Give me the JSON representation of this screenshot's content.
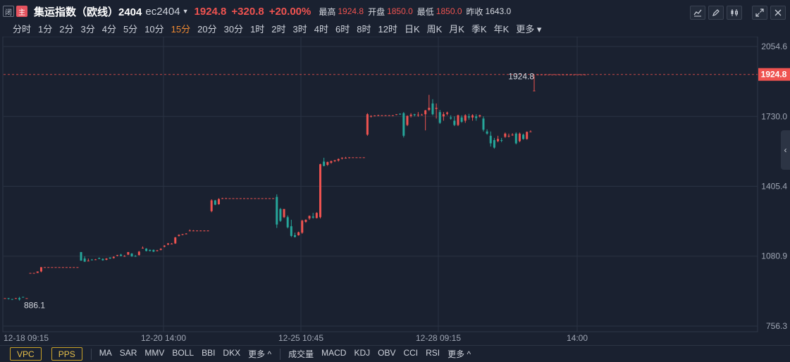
{
  "header": {
    "badges": [
      "闭",
      "主"
    ],
    "title": "集运指数（欧线）2404",
    "code": "ec2404",
    "last_price": "1924.8",
    "change": "+320.8",
    "change_pct": "+20.00%",
    "high_label": "最高",
    "high": "1924.8",
    "open_label": "开盘",
    "open": "1850.0",
    "low_label": "最低",
    "low": "1850.0",
    "prev_label": "昨收",
    "prev_close": "1643.0",
    "tools": [
      "line-chart-icon",
      "pencil-icon",
      "candlestick-icon",
      "expand-icon",
      "close-icon"
    ]
  },
  "periods": [
    "分时",
    "1分",
    "2分",
    "3分",
    "4分",
    "5分",
    "10分",
    "15分",
    "20分",
    "30分",
    "1时",
    "2时",
    "3时",
    "4时",
    "6时",
    "8时",
    "12时",
    "日K",
    "周K",
    "月K",
    "季K",
    "年K",
    "更多"
  ],
  "active_period": "15分",
  "bottom": {
    "boxed": [
      "VPC",
      "PPS"
    ],
    "main_indicators": [
      "MA",
      "SAR",
      "MMV",
      "BOLL",
      "BBI",
      "DKX",
      "更多 ^"
    ],
    "sub_indicators": [
      "成交量",
      "MACD",
      "KDJ",
      "OBV",
      "CCI",
      "RSI",
      "更多 ^"
    ]
  },
  "colors": {
    "up": "#ef5350",
    "down": "#26a69a",
    "background": "#1a2130",
    "grid": "#2a3343"
  },
  "chart_data": {
    "type": "candlestick",
    "title": "",
    "y_ticks": [
      2054.6,
      1730.0,
      1405.4,
      1080.9,
      756.3
    ],
    "ylim": [
      756.3,
      2054.6
    ],
    "x_ticks": [
      "12-18 09:15",
      "12-20 14:00",
      "12-25 10:45",
      "12-28 09:15",
      "14:00"
    ],
    "current_price_label": "1924.8",
    "annotations": [
      "886.1",
      "1924.8"
    ],
    "candles": [
      [
        886,
        886,
        886,
        886
      ],
      [
        886,
        886,
        883,
        880
      ],
      [
        882,
        882,
        880,
        878
      ],
      [
        885,
        887,
        886,
        884
      ],
      [
        886,
        892,
        880,
        875
      ],
      [
        892,
        892,
        890,
        888
      ],
      [
        886,
        886,
        886,
        886
      ],
      [
        1003,
        1003,
        1003,
        1003
      ],
      [
        1003,
        1003,
        1003,
        1003
      ],
      [
        1003,
        1004,
        1010,
        1008
      ],
      [
        1010,
        1012,
        1030,
        1006
      ],
      [
        1030,
        1030,
        1030,
        1030
      ],
      [
        1030,
        1030,
        1030,
        1030
      ],
      [
        1030,
        1030,
        1030,
        1030
      ],
      [
        1030,
        1030,
        1030,
        1030
      ],
      [
        1030,
        1030,
        1030,
        1030
      ],
      [
        1030,
        1030,
        1030,
        1030
      ],
      [
        1030,
        1030,
        1030,
        1030
      ],
      [
        1030,
        1030,
        1030,
        1030
      ],
      [
        1030,
        1030,
        1030,
        1030
      ],
      [
        1030,
        1030,
        1030,
        1030
      ],
      [
        1100,
        1100,
        1060,
        1060
      ],
      [
        1070,
        1080,
        1055,
        1060
      ],
      [
        1060,
        1070,
        1060,
        1058
      ],
      [
        1065,
        1068,
        1064,
        1063
      ],
      [
        1065,
        1068,
        1066,
        1063
      ],
      [
        1072,
        1075,
        1068,
        1067
      ],
      [
        1068,
        1071,
        1062,
        1060
      ],
      [
        1064,
        1072,
        1070,
        1062
      ],
      [
        1075,
        1075,
        1070,
        1068
      ],
      [
        1072,
        1080,
        1078,
        1070
      ],
      [
        1083,
        1087,
        1086,
        1080
      ],
      [
        1088,
        1092,
        1082,
        1080
      ],
      [
        1082,
        1086,
        1082,
        1078
      ],
      [
        1088,
        1100,
        1100,
        1086
      ],
      [
        1093,
        1095,
        1080,
        1078
      ],
      [
        1082,
        1086,
        1080,
        1078
      ],
      [
        1086,
        1105,
        1102,
        1084
      ],
      [
        1120,
        1126,
        1120,
        1116
      ],
      [
        1116,
        1118,
        1105,
        1103
      ],
      [
        1110,
        1112,
        1105,
        1103
      ],
      [
        1110,
        1112,
        1102,
        1100
      ],
      [
        1105,
        1110,
        1108,
        1103
      ],
      [
        1110,
        1118,
        1115,
        1108
      ],
      [
        1125,
        1132,
        1130,
        1122
      ],
      [
        1135,
        1142,
        1140,
        1132
      ],
      [
        1138,
        1142,
        1139,
        1136
      ],
      [
        1140,
        1170,
        1168,
        1138
      ],
      [
        1175,
        1182,
        1180,
        1172
      ],
      [
        1180,
        1184,
        1183,
        1178
      ],
      [
        1184,
        1188,
        1186,
        1182
      ],
      [
        1200,
        1205,
        1200,
        1198
      ],
      [
        1200,
        1202,
        1200,
        1198
      ],
      [
        1200,
        1201,
        1200,
        1199
      ],
      [
        1200,
        1201,
        1200,
        1199
      ],
      [
        1200,
        1201,
        1200,
        1199
      ],
      [
        1200,
        1201,
        1200,
        1199
      ],
      [
        1290,
        1345,
        1340,
        1285
      ],
      [
        1340,
        1342,
        1320,
        1318
      ],
      [
        1322,
        1350,
        1346,
        1320
      ],
      [
        1350,
        1352,
        1350,
        1348
      ],
      [
        1350,
        1352,
        1350,
        1348
      ],
      [
        1350,
        1350,
        1350,
        1350
      ],
      [
        1350,
        1350,
        1350,
        1350
      ],
      [
        1350,
        1350,
        1350,
        1350
      ],
      [
        1350,
        1350,
        1350,
        1350
      ],
      [
        1350,
        1350,
        1350,
        1350
      ],
      [
        1350,
        1350,
        1350,
        1350
      ],
      [
        1350,
        1350,
        1350,
        1350
      ],
      [
        1350,
        1350,
        1350,
        1350
      ],
      [
        1350,
        1350,
        1350,
        1350
      ],
      [
        1350,
        1350,
        1350,
        1350
      ],
      [
        1350,
        1350,
        1350,
        1350
      ],
      [
        1350,
        1350,
        1350,
        1350
      ],
      [
        1350,
        1350,
        1350,
        1350
      ],
      [
        1356,
        1368,
        1228,
        1212
      ],
      [
        1300,
        1305,
        1245,
        1240
      ],
      [
        1262,
        1300,
        1300,
        1258
      ],
      [
        1262,
        1270,
        1215,
        1210
      ],
      [
        1220,
        1250,
        1175,
        1170
      ],
      [
        1178,
        1190,
        1170,
        1168
      ],
      [
        1178,
        1195,
        1192,
        1176
      ],
      [
        1190,
        1250,
        1246,
        1185
      ],
      [
        1240,
        1252,
        1250,
        1236
      ],
      [
        1256,
        1270,
        1268,
        1250
      ],
      [
        1265,
        1282,
        1260,
        1255
      ],
      [
        1258,
        1285,
        1282,
        1256
      ],
      [
        1262,
        1510,
        1508,
        1256
      ],
      [
        1520,
        1538,
        1500,
        1498
      ],
      [
        1505,
        1520,
        1518,
        1500
      ],
      [
        1515,
        1525,
        1522,
        1510
      ],
      [
        1522,
        1528,
        1526,
        1518
      ],
      [
        1525,
        1535,
        1532,
        1520
      ],
      [
        1535,
        1540,
        1538,
        1530
      ],
      [
        1538,
        1542,
        1538,
        1534
      ],
      [
        1538,
        1540,
        1540,
        1535
      ],
      [
        1540,
        1540,
        1540,
        1540
      ],
      [
        1540,
        1540,
        1540,
        1540
      ],
      [
        1540,
        1540,
        1540,
        1540
      ],
      [
        1540,
        1540,
        1540,
        1540
      ],
      [
        1645,
        1745,
        1740,
        1640
      ],
      [
        1730,
        1735,
        1732,
        1725
      ],
      [
        1732,
        1735,
        1734,
        1730
      ],
      [
        1735,
        1738,
        1735,
        1732
      ],
      [
        1735,
        1736,
        1735,
        1733
      ],
      [
        1735,
        1736,
        1735,
        1734
      ],
      [
        1735,
        1736,
        1735,
        1734
      ],
      [
        1735,
        1736,
        1735,
        1734
      ],
      [
        1738,
        1740,
        1740,
        1736
      ],
      [
        1742,
        1744,
        1740,
        1738
      ],
      [
        1745,
        1750,
        1640,
        1632
      ],
      [
        1690,
        1735,
        1732,
        1685
      ],
      [
        1732,
        1745,
        1738,
        1725
      ],
      [
        1740,
        1742,
        1736,
        1730
      ],
      [
        1735,
        1750,
        1738,
        1728
      ],
      [
        1738,
        1742,
        1738,
        1736
      ],
      [
        1740,
        1760,
        1758,
        1665
      ],
      [
        1760,
        1830,
        1770,
        1755
      ],
      [
        1790,
        1810,
        1740,
        1735
      ],
      [
        1765,
        1790,
        1770,
        1720
      ],
      [
        1750,
        1760,
        1700,
        1695
      ],
      [
        1730,
        1750,
        1740,
        1710
      ],
      [
        1742,
        1752,
        1748,
        1735
      ],
      [
        1725,
        1735,
        1720,
        1715
      ],
      [
        1710,
        1730,
        1690,
        1685
      ],
      [
        1690,
        1738,
        1735,
        1685
      ],
      [
        1725,
        1735,
        1705,
        1700
      ],
      [
        1710,
        1740,
        1735,
        1700
      ],
      [
        1730,
        1742,
        1725,
        1715
      ],
      [
        1725,
        1740,
        1735,
        1710
      ],
      [
        1730,
        1740,
        1722,
        1710
      ],
      [
        1730,
        1738,
        1735,
        1725
      ],
      [
        1720,
        1730,
        1668,
        1660
      ],
      [
        1660,
        1670,
        1650,
        1645
      ],
      [
        1640,
        1660,
        1605,
        1590
      ],
      [
        1620,
        1630,
        1585,
        1580
      ],
      [
        1615,
        1640,
        1625,
        1610
      ],
      [
        1620,
        1630,
        1618,
        1610
      ],
      [
        1635,
        1655,
        1650,
        1630
      ],
      [
        1640,
        1650,
        1640,
        1632
      ],
      [
        1645,
        1652,
        1645,
        1640
      ],
      [
        1650,
        1656,
        1605,
        1600
      ],
      [
        1615,
        1655,
        1650,
        1610
      ],
      [
        1645,
        1650,
        1625,
        1622
      ],
      [
        1625,
        1660,
        1658,
        1622
      ],
      [
        1660,
        1665,
        1660,
        1658
      ],
      [
        1850,
        1925,
        1850,
        1850
      ],
      [
        1924.8,
        1924.8,
        1924.8,
        1924.8
      ],
      [
        1924.8,
        1924.8,
        1924.8,
        1924.8
      ],
      [
        1924.8,
        1924.8,
        1924.8,
        1924.8
      ],
      [
        1924.8,
        1924.8,
        1924.8,
        1924.8
      ],
      [
        1924.8,
        1924.8,
        1924.8,
        1924.8
      ],
      [
        1924.8,
        1924.8,
        1924.8,
        1924.8
      ],
      [
        1924.8,
        1924.8,
        1924.8,
        1924.8
      ],
      [
        1924.8,
        1924.8,
        1924.8,
        1924.8
      ],
      [
        1924.8,
        1924.8,
        1924.8,
        1924.8
      ],
      [
        1924.8,
        1924.8,
        1924.8,
        1924.8
      ],
      [
        1924.8,
        1924.8,
        1924.8,
        1924.8
      ],
      [
        1924.8,
        1924.8,
        1924.8,
        1924.8
      ],
      [
        1924.8,
        1924.8,
        1924.8,
        1924.8
      ],
      [
        1924.8,
        1924.8,
        1924.8,
        1924.8
      ]
    ]
  }
}
